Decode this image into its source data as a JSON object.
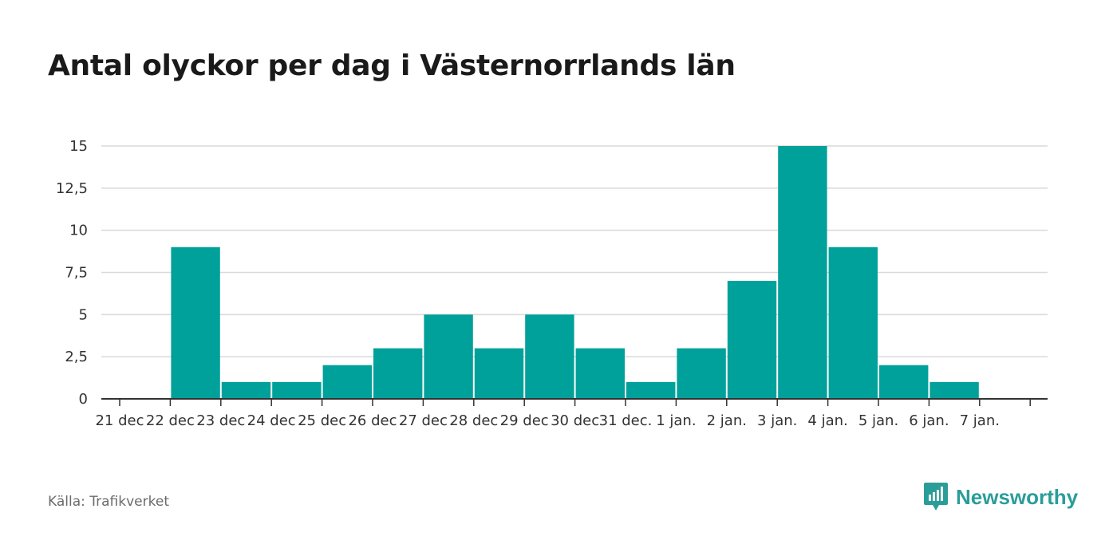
{
  "chart_data": {
    "type": "bar",
    "title": "Antal olyckor per dag i Västernorrlands län",
    "xlabel": "",
    "ylabel": "",
    "categories": [
      "21 dec",
      "22 dec",
      "23 dec",
      "24 dec",
      "25 dec",
      "26 dec",
      "27 dec",
      "28 dec",
      "29 dec",
      "30 dec",
      "31 dec.",
      "1 jan.",
      "2 jan.",
      "3 jan.",
      "4 jan.",
      "5 jan.",
      "6 jan.",
      "7 jan."
    ],
    "values": [
      null,
      9,
      1,
      1,
      2,
      3,
      5,
      3,
      5,
      3,
      1,
      3,
      7,
      15,
      9,
      2,
      1,
      null
    ],
    "yticks": [
      "0",
      "2,5",
      "5",
      "7,5",
      "10",
      "12,5",
      "15"
    ],
    "ylim": [
      0,
      15
    ],
    "grid": true,
    "bar_color": "#00a19a"
  },
  "footer": {
    "source": "Källa: Trafikverket",
    "brand": "Newsworthy"
  },
  "icons": {
    "brand": "newsworthy-logo-icon"
  }
}
